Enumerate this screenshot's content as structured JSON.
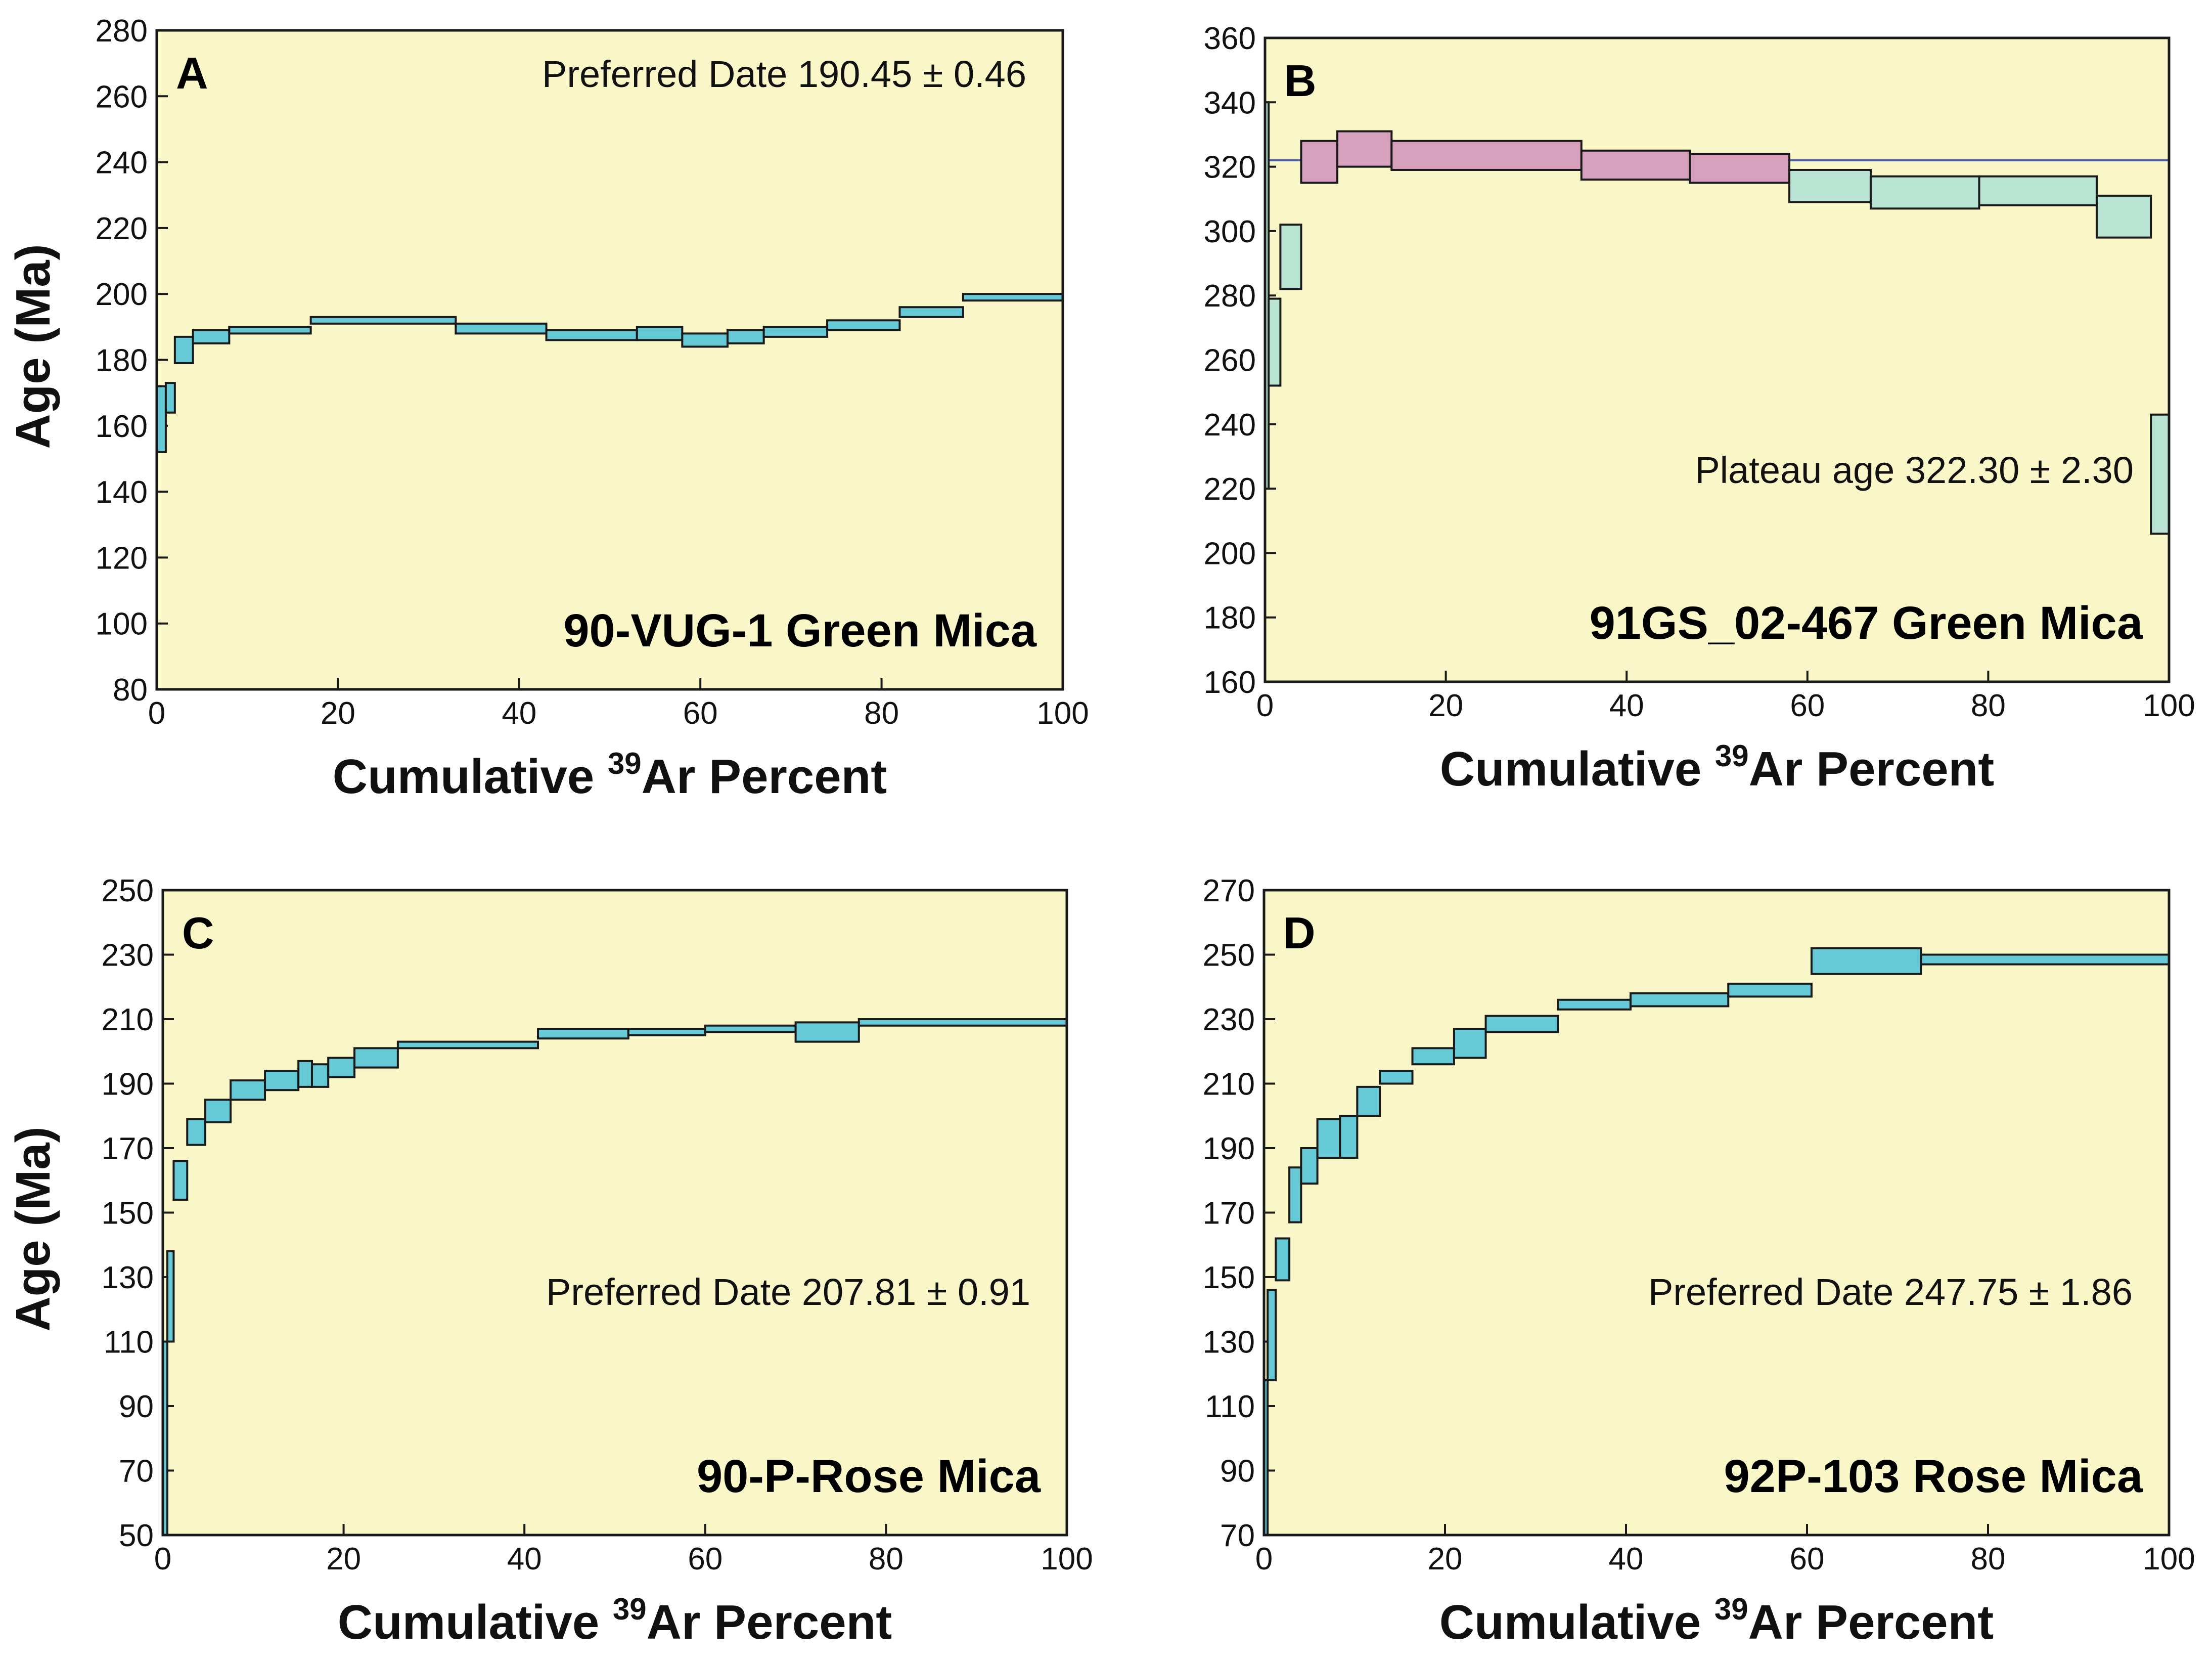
{
  "chart_data": [
    {
      "type": "step-spectrum",
      "panel_letter": "A",
      "annotation": "Preferred Date 190.45 ± 0.46",
      "sample_label": "90-VUG-1 Green Mica",
      "ylabel": "Age (Ma)",
      "xlabel_pre": "Cumulative ",
      "xlabel_sup": "39",
      "xlabel_post": "Ar Percent",
      "xlim": [
        0,
        100
      ],
      "ylim": [
        80,
        280
      ],
      "xticks": [
        "0",
        "20",
        "40",
        "60",
        "80",
        "100"
      ],
      "yticks": [
        "80",
        "100",
        "120",
        "140",
        "160",
        "180",
        "200",
        "220",
        "240",
        "260",
        "280"
      ],
      "plateau_line": null,
      "steps": [
        {
          "x0": 0,
          "x1": 1,
          "lo": 152,
          "hi": 172,
          "color": "#66c9d6"
        },
        {
          "x0": 1,
          "x1": 2,
          "lo": 164,
          "hi": 173,
          "color": "#66c9d6"
        },
        {
          "x0": 2,
          "x1": 4,
          "lo": 179,
          "hi": 187,
          "color": "#66c9d6"
        },
        {
          "x0": 4,
          "x1": 8,
          "lo": 185,
          "hi": 189,
          "color": "#66c9d6"
        },
        {
          "x0": 8,
          "x1": 17,
          "lo": 188,
          "hi": 190,
          "color": "#66c9d6"
        },
        {
          "x0": 17,
          "x1": 33,
          "lo": 191,
          "hi": 193,
          "color": "#66c9d6"
        },
        {
          "x0": 33,
          "x1": 43,
          "lo": 188,
          "hi": 191,
          "color": "#66c9d6"
        },
        {
          "x0": 43,
          "x1": 53,
          "lo": 186,
          "hi": 189,
          "color": "#66c9d6"
        },
        {
          "x0": 53,
          "x1": 58,
          "lo": 186,
          "hi": 190,
          "color": "#66c9d6"
        },
        {
          "x0": 58,
          "x1": 63,
          "lo": 184,
          "hi": 188,
          "color": "#66c9d6"
        },
        {
          "x0": 63,
          "x1": 67,
          "lo": 185,
          "hi": 189,
          "color": "#66c9d6"
        },
        {
          "x0": 67,
          "x1": 74,
          "lo": 187,
          "hi": 190,
          "color": "#66c9d6"
        },
        {
          "x0": 74,
          "x1": 82,
          "lo": 189,
          "hi": 192,
          "color": "#66c9d6"
        },
        {
          "x0": 82,
          "x1": 89,
          "lo": 193,
          "hi": 196,
          "color": "#66c9d6"
        },
        {
          "x0": 89,
          "x1": 100,
          "lo": 198,
          "hi": 200,
          "color": "#66c9d6"
        }
      ]
    },
    {
      "type": "step-spectrum",
      "panel_letter": "B",
      "annotation": "Plateau age 322.30 ± 2.30",
      "sample_label": "91GS_02-467 Green Mica",
      "ylabel": "",
      "xlabel_pre": "Cumulative ",
      "xlabel_sup": "39",
      "xlabel_post": "Ar Percent",
      "xlim": [
        0,
        100
      ],
      "ylim": [
        160,
        360
      ],
      "xticks": [
        "0",
        "20",
        "40",
        "60",
        "80",
        "100"
      ],
      "yticks": [
        "160",
        "180",
        "200",
        "220",
        "240",
        "260",
        "280",
        "300",
        "320",
        "340",
        "360"
      ],
      "plateau_line": 322,
      "steps": [
        {
          "x0": 0,
          "x1": 0.4,
          "lo": 220,
          "hi": 340,
          "color": "#b9e3d3"
        },
        {
          "x0": 0.4,
          "x1": 1.7,
          "lo": 252,
          "hi": 279,
          "color": "#b9e3d3"
        },
        {
          "x0": 1.7,
          "x1": 4,
          "lo": 282,
          "hi": 302,
          "color": "#b9e3d3"
        },
        {
          "x0": 4,
          "x1": 8,
          "lo": 315,
          "hi": 328,
          "color": "#d7a0bd"
        },
        {
          "x0": 8,
          "x1": 14,
          "lo": 320,
          "hi": 331,
          "color": "#d7a0bd"
        },
        {
          "x0": 14,
          "x1": 35,
          "lo": 319,
          "hi": 328,
          "color": "#d7a0bd"
        },
        {
          "x0": 35,
          "x1": 47,
          "lo": 316,
          "hi": 325,
          "color": "#d7a0bd"
        },
        {
          "x0": 47,
          "x1": 58,
          "lo": 315,
          "hi": 324,
          "color": "#d7a0bd"
        },
        {
          "x0": 58,
          "x1": 67,
          "lo": 309,
          "hi": 319,
          "color": "#b9e3d3"
        },
        {
          "x0": 67,
          "x1": 79,
          "lo": 307,
          "hi": 317,
          "color": "#b9e3d3"
        },
        {
          "x0": 79,
          "x1": 92,
          "lo": 308,
          "hi": 317,
          "color": "#b9e3d3"
        },
        {
          "x0": 92,
          "x1": 98,
          "lo": 298,
          "hi": 311,
          "color": "#b9e3d3"
        },
        {
          "x0": 98,
          "x1": 100,
          "lo": 206,
          "hi": 243,
          "color": "#b9e3d3"
        }
      ]
    },
    {
      "type": "step-spectrum",
      "panel_letter": "C",
      "annotation": "Preferred Date 207.81 ± 0.91",
      "sample_label": "90-P-Rose Mica",
      "ylabel": "Age (Ma)",
      "xlabel_pre": "Cumulative ",
      "xlabel_sup": "39",
      "xlabel_post": "Ar Percent",
      "xlim": [
        0,
        100
      ],
      "ylim": [
        50,
        250
      ],
      "xticks": [
        "0",
        "20",
        "40",
        "60",
        "80",
        "100"
      ],
      "yticks": [
        "50",
        "70",
        "90",
        "110",
        "130",
        "150",
        "170",
        "190",
        "210",
        "230",
        "250"
      ],
      "plateau_line": null,
      "steps": [
        {
          "x0": 0,
          "x1": 0.5,
          "lo": 50,
          "hi": 110,
          "color": "#66c9d6"
        },
        {
          "x0": 0.5,
          "x1": 1.2,
          "lo": 110,
          "hi": 138,
          "color": "#66c9d6"
        },
        {
          "x0": 1.2,
          "x1": 2.7,
          "lo": 154,
          "hi": 166,
          "color": "#66c9d6"
        },
        {
          "x0": 2.7,
          "x1": 4.7,
          "lo": 171,
          "hi": 179,
          "color": "#66c9d6"
        },
        {
          "x0": 4.7,
          "x1": 7.5,
          "lo": 178,
          "hi": 185,
          "color": "#66c9d6"
        },
        {
          "x0": 7.5,
          "x1": 11.3,
          "lo": 185,
          "hi": 191,
          "color": "#66c9d6"
        },
        {
          "x0": 11.3,
          "x1": 15,
          "lo": 188,
          "hi": 194,
          "color": "#66c9d6"
        },
        {
          "x0": 15,
          "x1": 16.5,
          "lo": 189,
          "hi": 197,
          "color": "#66c9d6"
        },
        {
          "x0": 16.5,
          "x1": 18.3,
          "lo": 189,
          "hi": 196,
          "color": "#66c9d6"
        },
        {
          "x0": 18.3,
          "x1": 21.2,
          "lo": 192,
          "hi": 198,
          "color": "#66c9d6"
        },
        {
          "x0": 21.2,
          "x1": 26,
          "lo": 195,
          "hi": 201,
          "color": "#66c9d6"
        },
        {
          "x0": 26,
          "x1": 41.5,
          "lo": 201,
          "hi": 203,
          "color": "#66c9d6"
        },
        {
          "x0": 41.5,
          "x1": 51.5,
          "lo": 204,
          "hi": 207,
          "color": "#66c9d6"
        },
        {
          "x0": 51.5,
          "x1": 60,
          "lo": 205,
          "hi": 207,
          "color": "#66c9d6"
        },
        {
          "x0": 60,
          "x1": 70,
          "lo": 206,
          "hi": 208,
          "color": "#66c9d6"
        },
        {
          "x0": 70,
          "x1": 77,
          "lo": 203,
          "hi": 209,
          "color": "#66c9d6"
        },
        {
          "x0": 77,
          "x1": 100,
          "lo": 208,
          "hi": 210,
          "color": "#66c9d6"
        }
      ]
    },
    {
      "type": "step-spectrum",
      "panel_letter": "D",
      "annotation": "Preferred Date 247.75 ± 1.86",
      "sample_label": "92P-103 Rose Mica",
      "ylabel": "",
      "xlabel_pre": "Cumulative ",
      "xlabel_sup": "39",
      "xlabel_post": "Ar Percent",
      "xlim": [
        0,
        100
      ],
      "ylim": [
        70,
        270
      ],
      "xticks": [
        "0",
        "20",
        "40",
        "60",
        "80",
        "100"
      ],
      "yticks": [
        "70",
        "90",
        "110",
        "130",
        "150",
        "170",
        "190",
        "210",
        "230",
        "250",
        "270"
      ],
      "plateau_line": null,
      "steps": [
        {
          "x0": 0,
          "x1": 0.4,
          "lo": 70,
          "hi": 118,
          "color": "#66c9d6"
        },
        {
          "x0": 0.4,
          "x1": 1.3,
          "lo": 118,
          "hi": 146,
          "color": "#66c9d6"
        },
        {
          "x0": 1.3,
          "x1": 2.8,
          "lo": 149,
          "hi": 162,
          "color": "#66c9d6"
        },
        {
          "x0": 2.8,
          "x1": 4.1,
          "lo": 167,
          "hi": 184,
          "color": "#66c9d6"
        },
        {
          "x0": 4.1,
          "x1": 5.9,
          "lo": 179,
          "hi": 190,
          "color": "#66c9d6"
        },
        {
          "x0": 5.9,
          "x1": 8.4,
          "lo": 187,
          "hi": 199,
          "color": "#66c9d6"
        },
        {
          "x0": 8.4,
          "x1": 10.3,
          "lo": 187,
          "hi": 200,
          "color": "#66c9d6"
        },
        {
          "x0": 10.3,
          "x1": 12.8,
          "lo": 200,
          "hi": 209,
          "color": "#66c9d6"
        },
        {
          "x0": 12.8,
          "x1": 16.4,
          "lo": 210,
          "hi": 214,
          "color": "#66c9d6"
        },
        {
          "x0": 16.4,
          "x1": 21,
          "lo": 216,
          "hi": 221,
          "color": "#66c9d6"
        },
        {
          "x0": 21,
          "x1": 24.5,
          "lo": 218,
          "hi": 227,
          "color": "#66c9d6"
        },
        {
          "x0": 24.5,
          "x1": 32.5,
          "lo": 226,
          "hi": 231,
          "color": "#66c9d6"
        },
        {
          "x0": 32.5,
          "x1": 40.5,
          "lo": 233,
          "hi": 236,
          "color": "#66c9d6"
        },
        {
          "x0": 40.5,
          "x1": 51.3,
          "lo": 234,
          "hi": 238,
          "color": "#66c9d6"
        },
        {
          "x0": 51.3,
          "x1": 60.5,
          "lo": 237,
          "hi": 241,
          "color": "#66c9d6"
        },
        {
          "x0": 60.5,
          "x1": 72.6,
          "lo": 244,
          "hi": 252,
          "color": "#66c9d6"
        },
        {
          "x0": 72.6,
          "x1": 100,
          "lo": 247,
          "hi": 250,
          "color": "#66c9d6"
        }
      ]
    }
  ],
  "colors": {
    "plot_background": "#f9f6c8",
    "outline": "#1a1a1a",
    "plateau_line": "#4b5da8"
  }
}
